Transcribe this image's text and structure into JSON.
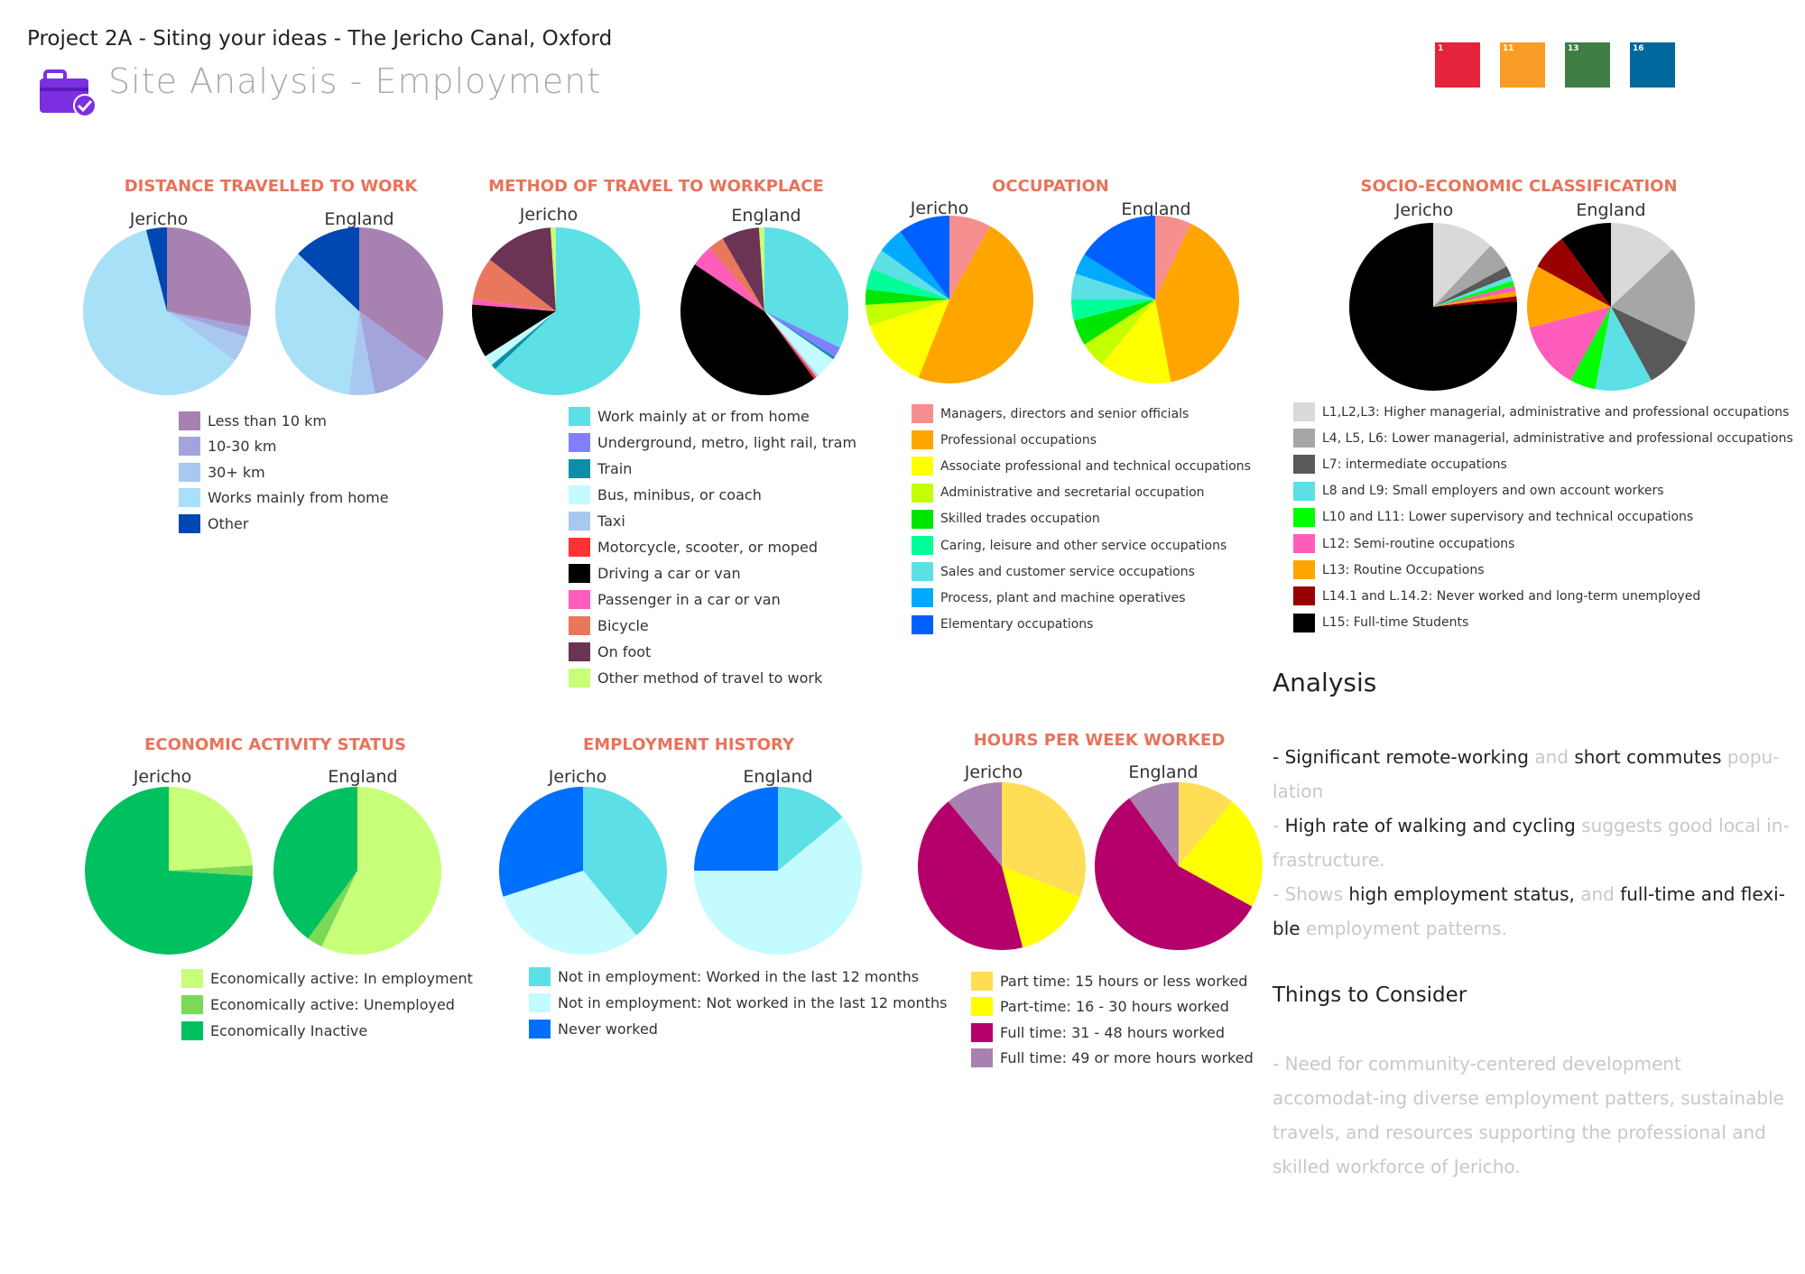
{
  "header": {
    "project": "Project 2A - Siting your ideas - The Jericho Canal, Oxford",
    "page": "Site Analysis - Employment",
    "sdg": [
      {
        "num": "1",
        "color": "#e5243b"
      },
      {
        "num": "11",
        "color": "#f99d26"
      },
      {
        "num": "13",
        "color": "#3f7e44"
      },
      {
        "num": "16",
        "color": "#00689d"
      }
    ]
  },
  "analysis": {
    "heading": "Analysis",
    "p1": [
      "- Significant remote-working",
      " and ",
      "short commutes",
      " popu-lation"
    ],
    "p2": [
      "- ",
      "High rate of walking and cycling",
      " suggests good local in-frastructure."
    ],
    "p3": [
      "- Shows ",
      "high employment status,",
      " and ",
      "full-time and flexi-ble",
      " employment patterns."
    ],
    "consider_heading": "Things to Consider",
    "consider_text": "- Need for community-centered development accomodat-ing diverse employment patters, sustainable travels, and resources supporting the professional and skilled workforce of Jericho."
  },
  "chart_data": [
    {
      "type": "pie",
      "title": "DISTANCE TRAVELLED TO WORK",
      "pies": [
        "Jericho",
        "England"
      ],
      "categories": [
        "Less than 10 km",
        "10-30 km",
        "30+ km",
        "Works mainly from home",
        "Other"
      ],
      "colors": [
        "#a782b1",
        "#a4a4dc",
        "#a8c8f0",
        "#a8e0f8",
        "#0047b3"
      ],
      "series": [
        {
          "name": "Jericho",
          "values": [
            28,
            2,
            5,
            61,
            4
          ]
        },
        {
          "name": "England",
          "values": [
            35,
            12,
            5,
            35,
            13
          ]
        }
      ]
    },
    {
      "type": "pie",
      "title": "METHOD OF TRAVEL TO WORKPLACE",
      "pies": [
        "Jericho",
        "England"
      ],
      "categories": [
        "Work mainly at or from home",
        "Underground, metro, light rail, tram",
        "Train",
        "Bus, minibus, or coach",
        "Taxi",
        "Motorcycle, scooter, or moped",
        "Driving a car or van",
        "Passenger in a car or van",
        "Bicycle",
        "On foot",
        "Other method of travel to work"
      ],
      "colors": [
        "#5ddfe6",
        "#8080ff",
        "#0a8fa8",
        "#c4fbff",
        "#a8c8f0",
        "#ff3333",
        "#000000",
        "#ff5cbc",
        "#e8775e",
        "#6b3455",
        "#c8ff78"
      ],
      "series": [
        {
          "name": "Jericho",
          "values": [
            61,
            0,
            1,
            2,
            0,
            0,
            10,
            1,
            8,
            13,
            1
          ]
        },
        {
          "name": "England",
          "values": [
            31,
            2,
            0.5,
            4,
            0.5,
            0.5,
            43,
            4,
            3,
            7,
            1
          ]
        }
      ]
    },
    {
      "type": "pie",
      "title": "OCCUPATION",
      "pies": [
        "Jericho",
        "England"
      ],
      "categories": [
        "Managers, directors and senior officials",
        "Professional occupations",
        "Associate professional and technical occupations",
        "Administrative and secretarial occupation",
        "Skilled trades occupation",
        "Caring, leisure and other service occupations",
        "Sales and customer service occupations",
        "Process, plant and machine operatives",
        "Elementary occupations"
      ],
      "colors": [
        "#f58f8f",
        "#ffa500",
        "#ffff00",
        "#c4ff00",
        "#00e600",
        "#00ff99",
        "#5ddfe6",
        "#00aaff",
        "#0060ff"
      ],
      "extra_series_colors": [
        "#ffa500",
        "#ffff00",
        "#c4ff00",
        "#00e600",
        "#00ff99",
        "#00e6cc",
        "#00aaff",
        "#0060ff",
        "#1000ff"
      ],
      "series": [
        {
          "name": "Jericho",
          "values": [
            8,
            48,
            14,
            4,
            3,
            4,
            4,
            5,
            10
          ]
        },
        {
          "name": "England",
          "values": [
            7,
            40,
            14,
            5,
            5,
            4,
            5,
            4,
            16
          ]
        }
      ]
    },
    {
      "type": "pie",
      "title": "SOCIO-ECONOMIC CLASSIFICATION",
      "pies": [
        "Jericho",
        "England"
      ],
      "categories": [
        "L1,L2,L3: Higher managerial, administrative and professional occupations",
        "L4, L5, L6: Lower managerial, administrative and professional occupations",
        "L7: intermediate occupations",
        "L8 and L9: Small employers and own account workers",
        "L10 and L11: Lower supervisory and technical occupations",
        "L12: Semi-routine occupations",
        "L13: Routine Occupations",
        "L14.1 and L.14.2: Never worked and long-term unemployed",
        "L15: Full-time Students"
      ],
      "colors": [
        "#d9d9d9",
        "#a6a6a6",
        "#595959",
        "#5ddfe6",
        "#00ff00",
        "#ff5cbc",
        "#ffa500",
        "#990000",
        "#000000"
      ],
      "series": [
        {
          "name": "Jericho",
          "values": [
            12,
            5,
            2,
            1,
            1,
            1,
            1,
            1,
            76
          ]
        },
        {
          "name": "England",
          "values": [
            13,
            19,
            10,
            11,
            5,
            13,
            12,
            7,
            10
          ]
        }
      ]
    },
    {
      "type": "pie",
      "title": "ECONOMIC ACTIVITY STATUS",
      "pies": [
        "Jericho",
        "England"
      ],
      "categories": [
        "Economically active: In employment",
        "Economically active: Unemployed",
        "Economically Inactive"
      ],
      "colors": [
        "#c8ff78",
        "#7ad957",
        "#00c060"
      ],
      "series": [
        {
          "name": "Jericho",
          "values": [
            24,
            2,
            74
          ]
        },
        {
          "name": "England",
          "values": [
            57,
            3,
            40
          ]
        }
      ]
    },
    {
      "type": "pie",
      "title": "EMPLOYMENT HISTORY",
      "pies": [
        "Jericho",
        "England"
      ],
      "categories": [
        "Not in employment: Worked in the last 12 months",
        "Not in employment: Not worked in the last 12 months",
        "Never worked"
      ],
      "colors": [
        "#5ddfe6",
        "#c4fbff",
        "#0070ff"
      ],
      "series": [
        {
          "name": "Jericho",
          "values": [
            39,
            31,
            30
          ]
        },
        {
          "name": "England",
          "values": [
            14,
            61,
            25
          ]
        }
      ]
    },
    {
      "type": "pie",
      "title": "HOURS PER WEEK WORKED",
      "pies": [
        "Jericho",
        "England"
      ],
      "categories": [
        "Part time: 15 hours or less worked",
        "Part-time: 16 - 30 hours worked",
        "Full time: 31 - 48 hours worked",
        "Full time: 49 or more hours worked"
      ],
      "colors": [
        "#ffdd55",
        "#ffff00",
        "#b5006b",
        "#a782b1"
      ],
      "series": [
        {
          "name": "Jericho",
          "values": [
            31,
            15,
            43,
            11
          ]
        },
        {
          "name": "England",
          "values": [
            11,
            22,
            57,
            10
          ]
        }
      ]
    }
  ]
}
